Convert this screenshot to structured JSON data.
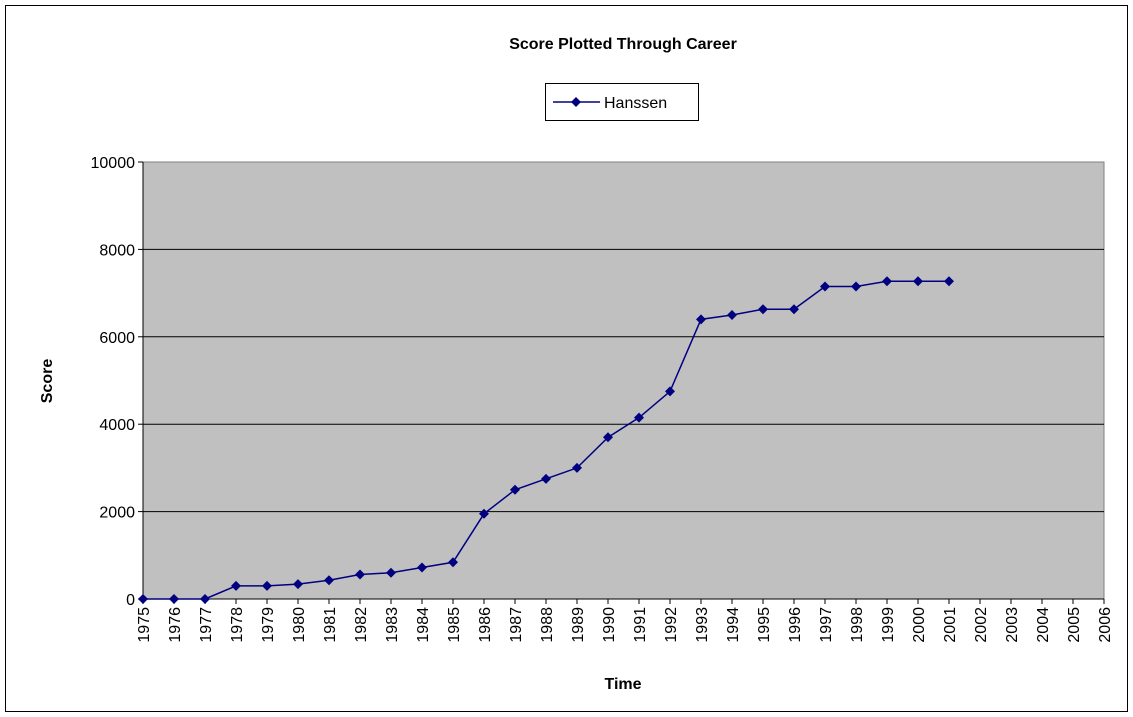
{
  "chart_data": {
    "type": "line",
    "title": "Score Plotted Through Career",
    "x_label": "Time",
    "y_label": "Score",
    "categories": [
      "1975",
      "1976",
      "1977",
      "1978",
      "1979",
      "1980",
      "1981",
      "1982",
      "1983",
      "1984",
      "1985",
      "1986",
      "1987",
      "1988",
      "1989",
      "1990",
      "1991",
      "1992",
      "1993",
      "1994",
      "1995",
      "1996",
      "1997",
      "1998",
      "1999",
      "2000",
      "2001",
      "2002",
      "2003",
      "2004",
      "2005",
      "2006"
    ],
    "series": [
      {
        "name": "Hanssen",
        "color": "#000080",
        "values": [
          0,
          0,
          0,
          300,
          300,
          340,
          430,
          560,
          600,
          720,
          840,
          1950,
          2500,
          2750,
          3000,
          3700,
          4150,
          4750,
          6400,
          6500,
          6630,
          6630,
          7150,
          7150,
          7270,
          7270,
          7270,
          null,
          null,
          null,
          null,
          null
        ]
      }
    ],
    "ylim": [
      0,
      10000
    ],
    "yticks": [
      0,
      2000,
      4000,
      6000,
      8000,
      10000
    ],
    "grid": true,
    "legend": "top"
  }
}
